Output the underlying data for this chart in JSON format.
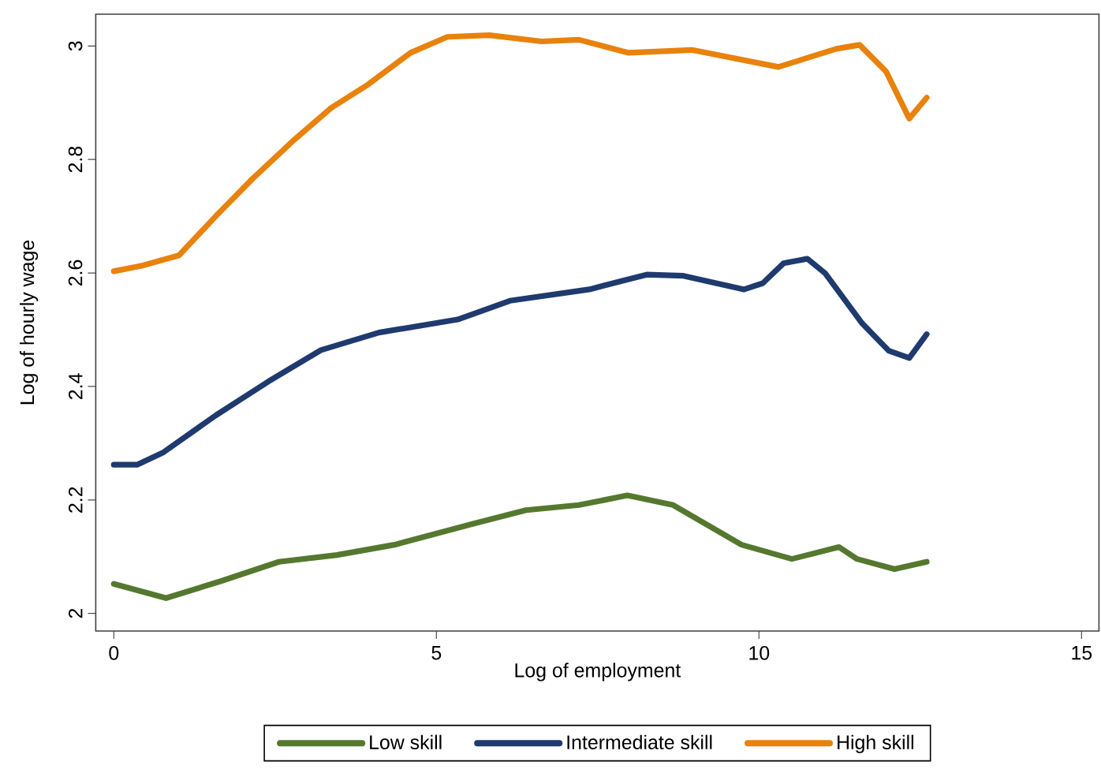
{
  "chart_data": {
    "type": "line",
    "xlabel": "Log of employment",
    "ylabel": "Log of hourly wage",
    "xlim": [
      -0.28,
      15.27
    ],
    "ylim": [
      1.969,
      3.056
    ],
    "xticks": [
      0,
      5,
      10,
      15
    ],
    "yticks": [
      2,
      2.2,
      2.4,
      2.6,
      2.8,
      3
    ],
    "legend": "bottom",
    "grid": false,
    "marker": "none",
    "line_style": "solid",
    "series": [
      {
        "name": "Low skill",
        "color": "#55782f",
        "x": [
          0,
          0.81,
          1.66,
          2.56,
          3.46,
          4.35,
          5.57,
          6.39,
          7.21,
          7.96,
          8.67,
          9.73,
          10.51,
          11.24,
          11.52,
          12.1,
          12.6
        ],
        "values": [
          2.052,
          2.027,
          2.057,
          2.091,
          2.103,
          2.121,
          2.158,
          2.182,
          2.191,
          2.208,
          2.191,
          2.121,
          2.096,
          2.117,
          2.096,
          2.078,
          2.091
        ]
      },
      {
        "name": "Intermediate skill",
        "color": "#1f3a6e",
        "x": [
          0,
          0.36,
          0.77,
          1.58,
          2.4,
          3.21,
          4.11,
          5.33,
          6.14,
          7.37,
          7.98,
          8.26,
          8.83,
          9.77,
          10.06,
          10.38,
          10.75,
          11.03,
          11.6,
          12.01,
          12.33,
          12.6
        ],
        "values": [
          2.262,
          2.262,
          2.284,
          2.349,
          2.409,
          2.464,
          2.495,
          2.518,
          2.551,
          2.571,
          2.589,
          2.597,
          2.595,
          2.571,
          2.582,
          2.617,
          2.625,
          2.599,
          2.511,
          2.463,
          2.45,
          2.492
        ]
      },
      {
        "name": "High skill",
        "color": "#e8820c",
        "x": [
          0,
          0.44,
          1.01,
          1.58,
          2.15,
          2.8,
          3.37,
          3.94,
          4.6,
          5.17,
          5.82,
          6.63,
          7.21,
          7.98,
          8.96,
          10.3,
          11.2,
          11.56,
          11.97,
          12.33,
          12.6
        ],
        "values": [
          2.603,
          2.613,
          2.631,
          2.7,
          2.766,
          2.835,
          2.891,
          2.932,
          2.988,
          3.016,
          3.019,
          3.008,
          3.011,
          2.988,
          2.993,
          2.963,
          2.995,
          3.002,
          2.955,
          2.872,
          2.909
        ]
      }
    ]
  }
}
